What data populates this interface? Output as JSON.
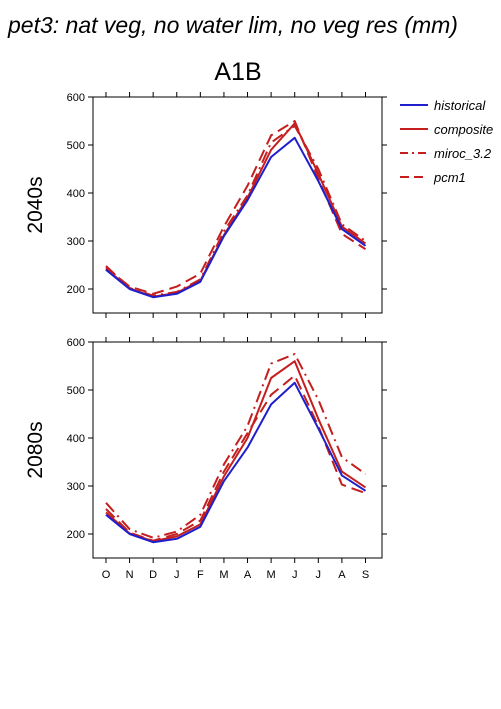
{
  "figure_title": "pet3: nat veg, no water lim, no veg res (mm)",
  "scenario_title": "A1B",
  "colors": {
    "historical": "#1f1fcc",
    "future": "#c41e1e"
  },
  "legend": [
    {
      "name": "historical",
      "color": "#1f1fcc",
      "dash": "solid"
    },
    {
      "name": "composite",
      "color": "#c41e1e",
      "dash": "solid"
    },
    {
      "name": "miroc_3.2",
      "color": "#c41e1e",
      "dash": "dashdot"
    },
    {
      "name": "pcm1",
      "color": "#c41e1e",
      "dash": "dashed"
    }
  ],
  "chart_data": [
    {
      "type": "line",
      "panel_label": "2040s",
      "categories": [
        "O",
        "N",
        "D",
        "J",
        "F",
        "M",
        "A",
        "M",
        "J",
        "J",
        "A",
        "S"
      ],
      "ylim": [
        150,
        600
      ],
      "yticks": [
        200,
        300,
        400,
        500,
        600
      ],
      "ytick_labels": [
        "200",
        "300",
        "400",
        "500",
        "600"
      ],
      "series": [
        {
          "name": "historical",
          "values": [
            240,
            200,
            183,
            190,
            215,
            310,
            385,
            475,
            515,
            425,
            325,
            290
          ]
        },
        {
          "name": "composite",
          "values": [
            242,
            201,
            184,
            192,
            217,
            312,
            390,
            490,
            545,
            440,
            330,
            295
          ]
        },
        {
          "name": "miroc_3.2",
          "values": [
            248,
            202,
            186,
            194,
            220,
            320,
            395,
            505,
            540,
            450,
            335,
            300
          ]
        },
        {
          "name": "pcm1",
          "values": [
            245,
            205,
            190,
            205,
            232,
            330,
            415,
            520,
            550,
            430,
            315,
            283
          ]
        }
      ]
    },
    {
      "type": "line",
      "panel_label": "2080s",
      "categories": [
        "O",
        "N",
        "D",
        "J",
        "F",
        "M",
        "A",
        "M",
        "J",
        "J",
        "A",
        "S"
      ],
      "ylim": [
        150,
        600
      ],
      "yticks": [
        200,
        300,
        400,
        500,
        600
      ],
      "ytick_labels": [
        "200",
        "300",
        "400",
        "500",
        "600"
      ],
      "series": [
        {
          "name": "historical",
          "values": [
            240,
            200,
            183,
            190,
            215,
            310,
            380,
            470,
            515,
            420,
            322,
            290
          ]
        },
        {
          "name": "composite",
          "values": [
            245,
            201,
            185,
            195,
            220,
            320,
            400,
            525,
            560,
            440,
            330,
            297
          ]
        },
        {
          "name": "miroc_3.2",
          "values": [
            265,
            210,
            192,
            205,
            240,
            345,
            425,
            555,
            575,
            480,
            360,
            325
          ]
        },
        {
          "name": "pcm1",
          "values": [
            252,
            203,
            186,
            200,
            228,
            330,
            410,
            490,
            530,
            425,
            303,
            285
          ]
        }
      ]
    }
  ]
}
